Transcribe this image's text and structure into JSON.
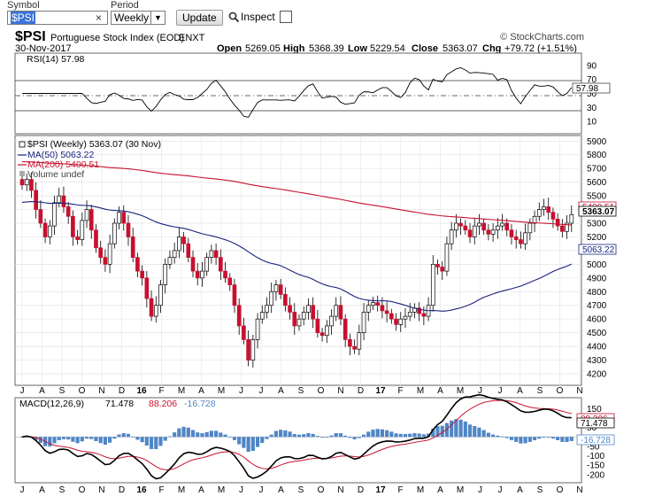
{
  "form": {
    "symbol_label": "Symbol",
    "symbol_value": "$PSI",
    "clear_glyph": "×",
    "period_label": "Period",
    "period_value": "Weekly",
    "update_label": "Update",
    "inspect_label": "Inspect"
  },
  "chart": {
    "symbol": "$PSI",
    "name": "Portuguese Stock Index (EOD)",
    "exchange": "ENXT",
    "copyright": "© StockCharts.com",
    "date": "30-Nov-2017",
    "open_label": "Open",
    "open": "5269.05",
    "high_label": "High",
    "high": "5368.39",
    "low_label": "Low",
    "low": "5229.54",
    "close_label": "Close",
    "close": "5363.07",
    "chg_label": "Chg",
    "chg": "+79.72 (+1.51%)",
    "price_legend": "$PSI (Weekly) 5363.07 (30 Nov)",
    "ma50_legend": "MA(50) 5063.22",
    "ma200_legend": "MA(200) 5400.51",
    "volume_legend": "Volume undef",
    "rsi_legend": "RSI(14) 57.98",
    "macd_name": "MACD(12,26,9)",
    "macd_value": "71.478",
    "signal_value": "88.206",
    "hist_value": "-16.728",
    "price_tag": "5363.07",
    "ma200_tag": "5400.51",
    "ma50_tag": "5063.22",
    "rsi_tag": "57.98",
    "macd_tag": "71.478",
    "signal_tag": "88.206",
    "hist_tag": "-16.728",
    "colors": {
      "ma50": "#1a237e",
      "ma200": "#c8102e",
      "up": "#ffffff",
      "down": "#c8102e",
      "hist": "#4f86c6"
    }
  },
  "chart_data": {
    "type": "candlestick",
    "x_labels": [
      "J",
      "A",
      "S",
      "O",
      "N",
      "D",
      "16",
      "F",
      "M",
      "A",
      "M",
      "J",
      "J",
      "A",
      "S",
      "O",
      "N",
      "D",
      "17",
      "F",
      "M",
      "A",
      "M",
      "J",
      "J",
      "A",
      "S",
      "O",
      "N"
    ],
    "price_ticks": [
      5900,
      5800,
      5700,
      5600,
      5500,
      5400,
      5300,
      5200,
      5100,
      5000,
      4900,
      4800,
      4700,
      4600,
      4500,
      4400,
      4300,
      4200
    ],
    "price_ylim": [
      4150,
      5950
    ],
    "rsi_ticks": [
      10,
      30,
      50,
      70,
      90
    ],
    "rsi_ylim": [
      0,
      100
    ],
    "macd_ticks": [
      -200,
      -150,
      -100,
      -50,
      50,
      100,
      150
    ],
    "macd_ylim": [
      -220,
      180
    ],
    "close_series": [
      5580,
      5620,
      5540,
      5400,
      5300,
      5200,
      5280,
      5450,
      5500,
      5420,
      5350,
      5200,
      5180,
      5320,
      5400,
      5250,
      5120,
      5050,
      5000,
      5150,
      5300,
      5380,
      5300,
      5200,
      5050,
      4950,
      4900,
      4750,
      4620,
      4700,
      4850,
      5000,
      5050,
      5100,
      5200,
      5150,
      5050,
      4950,
      4900,
      4950,
      5050,
      5100,
      5050,
      4950,
      4900,
      4850,
      4700,
      4550,
      4450,
      4300,
      4450,
      4600,
      4650,
      4700,
      4800,
      4850,
      4780,
      4700,
      4650,
      4550,
      4600,
      4650,
      4700,
      4600,
      4500,
      4480,
      4550,
      4620,
      4700,
      4600,
      4450,
      4400,
      4380,
      4500,
      4650,
      4700,
      4720,
      4700,
      4660,
      4640,
      4600,
      4560,
      4600,
      4620,
      4650,
      4680,
      4640,
      4620,
      4700,
      5000,
      4980,
      4950,
      5150,
      5250,
      5300,
      5280,
      5250,
      5200,
      5280,
      5300,
      5250,
      5220,
      5250,
      5280,
      5300,
      5250,
      5200,
      5180,
      5150,
      5230,
      5300,
      5350,
      5400,
      5420,
      5380,
      5330,
      5280,
      5240,
      5300,
      5363
    ]
  }
}
